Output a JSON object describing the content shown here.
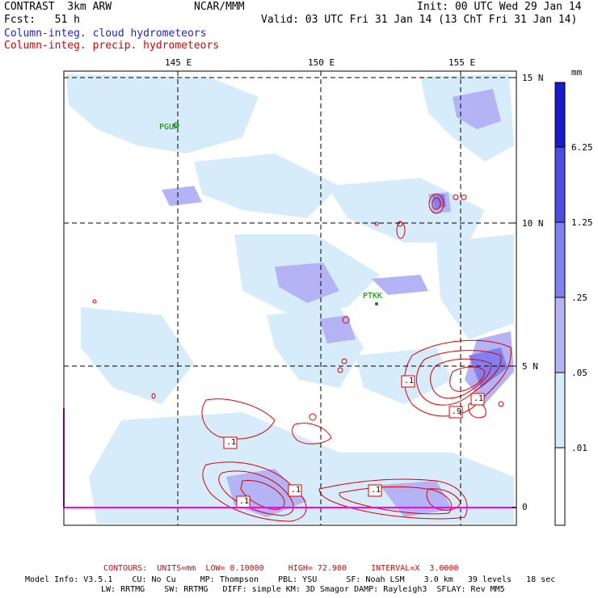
{
  "header": {
    "model": "CONTRAST  3km ARW",
    "org": "NCAR/MMM",
    "init": "Init: 00 UTC Wed 29 Jan 14",
    "fcst": "Fcst:   51 h",
    "valid": "Valid: 03 UTC Fri 31 Jan 14 (13 ChT Fri 31 Jan 14)",
    "field_cloud": "Column-integ. cloud hydrometeors",
    "field_precip": "Column-integ. precip. hydrometeors"
  },
  "axes": {
    "lon_labels": [
      "145 E",
      "150 E",
      "155 E"
    ],
    "lat_labels": [
      "15 N",
      "10 N",
      "5 N",
      "0"
    ]
  },
  "stations": [
    "PGUM",
    "PTKK"
  ],
  "contour_labels": [
    ".1",
    ".1",
    ".1",
    ".1",
    ".1",
    ".1",
    ".9"
  ],
  "colorbar": {
    "unit": "mm",
    "levels": [
      "6.25",
      "1.25",
      ".25",
      ".05",
      ".01"
    ],
    "colors": [
      "#1a1acc",
      "#4d4de6",
      "#8080ee",
      "#b3b3f5",
      "#d6ecfa",
      "#ffffff"
    ]
  },
  "footer": {
    "contours": "CONTOURS:  UNITS=mm  LOW= 0.10000     HIGH= 72.900     INTERVAL=X  3.0000",
    "line1": "Model Info: V3.5.1    CU: No Cu     MP: Thompson    PBL: YSU      SF: Noah LSM    3.0 km   39 levels   18 sec",
    "line2": "LW: RRTMG    SW: RRTMG   DIFF: simple KM: 3D Smagor DAMP: Rayleigh3  SFLAY: Rev MM5"
  },
  "colors": {
    "cloud_light": "#d6ecfa",
    "cloud_mid": "#b3b3f5",
    "cloud_dark": "#8080ee",
    "precip_contour": "#dd0000",
    "station_text": "#008800",
    "boundary": "#ff00ff"
  }
}
